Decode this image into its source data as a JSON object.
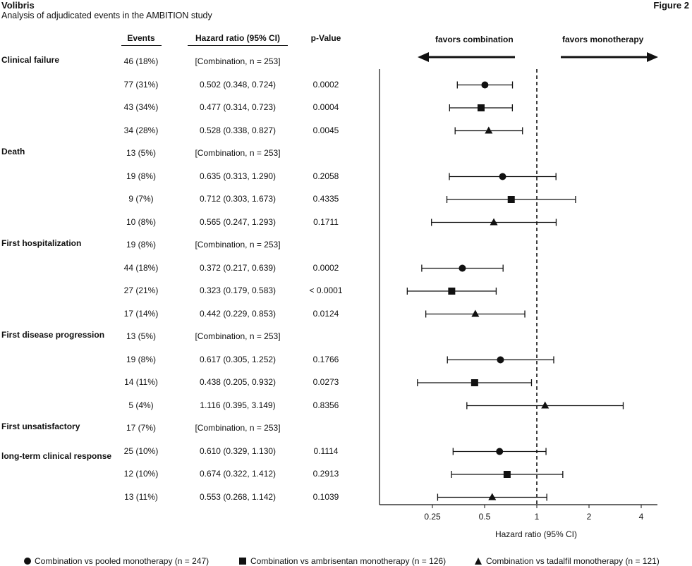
{
  "header": {
    "title": "Volibris",
    "subtitle": "Analysis of adjudicated events in the AMBITION study",
    "figure_label": "Figure 2"
  },
  "columns": {
    "events": "Events",
    "hr": "Hazard ratio (95% CI)",
    "p": "p-Value"
  },
  "favors": {
    "left": "favors combination",
    "right": "favors monotherapy"
  },
  "chart_data": {
    "type": "forest",
    "xlabel": "Hazard ratio (95% CI)",
    "x_scale": "log",
    "xlim": [
      0.16,
      5.0
    ],
    "reference_line": 1,
    "x_ticks": [
      0.25,
      0.5,
      1,
      2,
      4
    ],
    "x_tick_labels": [
      "0.25",
      "0.5",
      "1",
      "2",
      "4"
    ],
    "series": [
      {
        "name": "Combination vs pooled monotherapy (n = 247)",
        "marker": "circle"
      },
      {
        "name": "Combination vs ambrisentan monotherapy (n = 126)",
        "marker": "square"
      },
      {
        "name": "Combination vs tadalfil monotherapy (n = 121)",
        "marker": "triangle"
      }
    ],
    "groups": [
      {
        "label": "Clinical failure",
        "rows": [
          {
            "events": "46 (18%)",
            "hr_text": "[Combination, n = 253]",
            "p": ""
          },
          {
            "events": "77 (31%)",
            "hr_text": "0.502 (0.348, 0.724)",
            "p": "0.0002",
            "hr": 0.502,
            "lo": 0.348,
            "hi": 0.724,
            "series": 0
          },
          {
            "events": "43 (34%)",
            "hr_text": "0.477 (0.314, 0.723)",
            "p": "0.0004",
            "hr": 0.477,
            "lo": 0.314,
            "hi": 0.723,
            "series": 1
          },
          {
            "events": "34 (28%)",
            "hr_text": "0.528 (0.338, 0.827)",
            "p": "0.0045",
            "hr": 0.528,
            "lo": 0.338,
            "hi": 0.827,
            "series": 2
          }
        ]
      },
      {
        "label": "Death",
        "rows": [
          {
            "events": "13 (5%)",
            "hr_text": "[Combination, n = 253]",
            "p": ""
          },
          {
            "events": "19 (8%)",
            "hr_text": "0.635 (0.313, 1.290)",
            "p": "0.2058",
            "hr": 0.635,
            "lo": 0.313,
            "hi": 1.29,
            "series": 0
          },
          {
            "events": "9 (7%)",
            "hr_text": "0.712 (0.303, 1.673)",
            "p": "0.4335",
            "hr": 0.712,
            "lo": 0.303,
            "hi": 1.673,
            "series": 1
          },
          {
            "events": "10 (8%)",
            "hr_text": "0.565 (0.247, 1.293)",
            "p": "0.1711",
            "hr": 0.565,
            "lo": 0.247,
            "hi": 1.293,
            "series": 2
          }
        ]
      },
      {
        "label": "First hospitalization",
        "rows": [
          {
            "events": "19 (8%)",
            "hr_text": "[Combination, n = 253]",
            "p": ""
          },
          {
            "events": "44 (18%)",
            "hr_text": "0.372 (0.217, 0.639)",
            "p": "0.0002",
            "hr": 0.372,
            "lo": 0.217,
            "hi": 0.639,
            "series": 0
          },
          {
            "events": "27 (21%)",
            "hr_text": "0.323 (0.179, 0.583)",
            "p": "< 0.0001",
            "hr": 0.323,
            "lo": 0.179,
            "hi": 0.583,
            "series": 1
          },
          {
            "events": "17 (14%)",
            "hr_text": "0.442 (0.229, 0.853)",
            "p": "0.0124",
            "hr": 0.442,
            "lo": 0.229,
            "hi": 0.853,
            "series": 2
          }
        ]
      },
      {
        "label": "First disease  progression",
        "rows": [
          {
            "events": "13 (5%)",
            "hr_text": "[Combination, n = 253]",
            "p": ""
          },
          {
            "events": "19 (8%)",
            "hr_text": "0.617 (0.305, 1.252)",
            "p": "0.1766",
            "hr": 0.617,
            "lo": 0.305,
            "hi": 1.252,
            "series": 0
          },
          {
            "events": "14 (11%)",
            "hr_text": "0.438 (0.205, 0.932)",
            "p": "0.0273",
            "hr": 0.438,
            "lo": 0.205,
            "hi": 0.932,
            "series": 1
          },
          {
            "events": "5 (4%)",
            "hr_text": "1.116 (0.395, 3.149)",
            "p": "0.8356",
            "hr": 1.116,
            "lo": 0.395,
            "hi": 3.149,
            "series": 2
          }
        ]
      },
      {
        "label": "First unsatisfactory",
        "label2": "long-term clinical response",
        "rows": [
          {
            "events": "17 (7%)",
            "hr_text": "[Combination, n = 253]",
            "p": ""
          },
          {
            "events": "25 (10%)",
            "hr_text": "0.610 (0.329, 1.130)",
            "p": "0.1114",
            "hr": 0.61,
            "lo": 0.329,
            "hi": 1.13,
            "series": 0
          },
          {
            "events": "12 (10%)",
            "hr_text": "0.674 (0.322, 1.412)",
            "p": "0.2913",
            "hr": 0.674,
            "lo": 0.322,
            "hi": 1.412,
            "series": 1
          },
          {
            "events": "13 (11%)",
            "hr_text": "0.553 (0.268, 1.142)",
            "p": "0.1039",
            "hr": 0.553,
            "lo": 0.268,
            "hi": 1.142,
            "series": 2
          }
        ]
      }
    ]
  }
}
